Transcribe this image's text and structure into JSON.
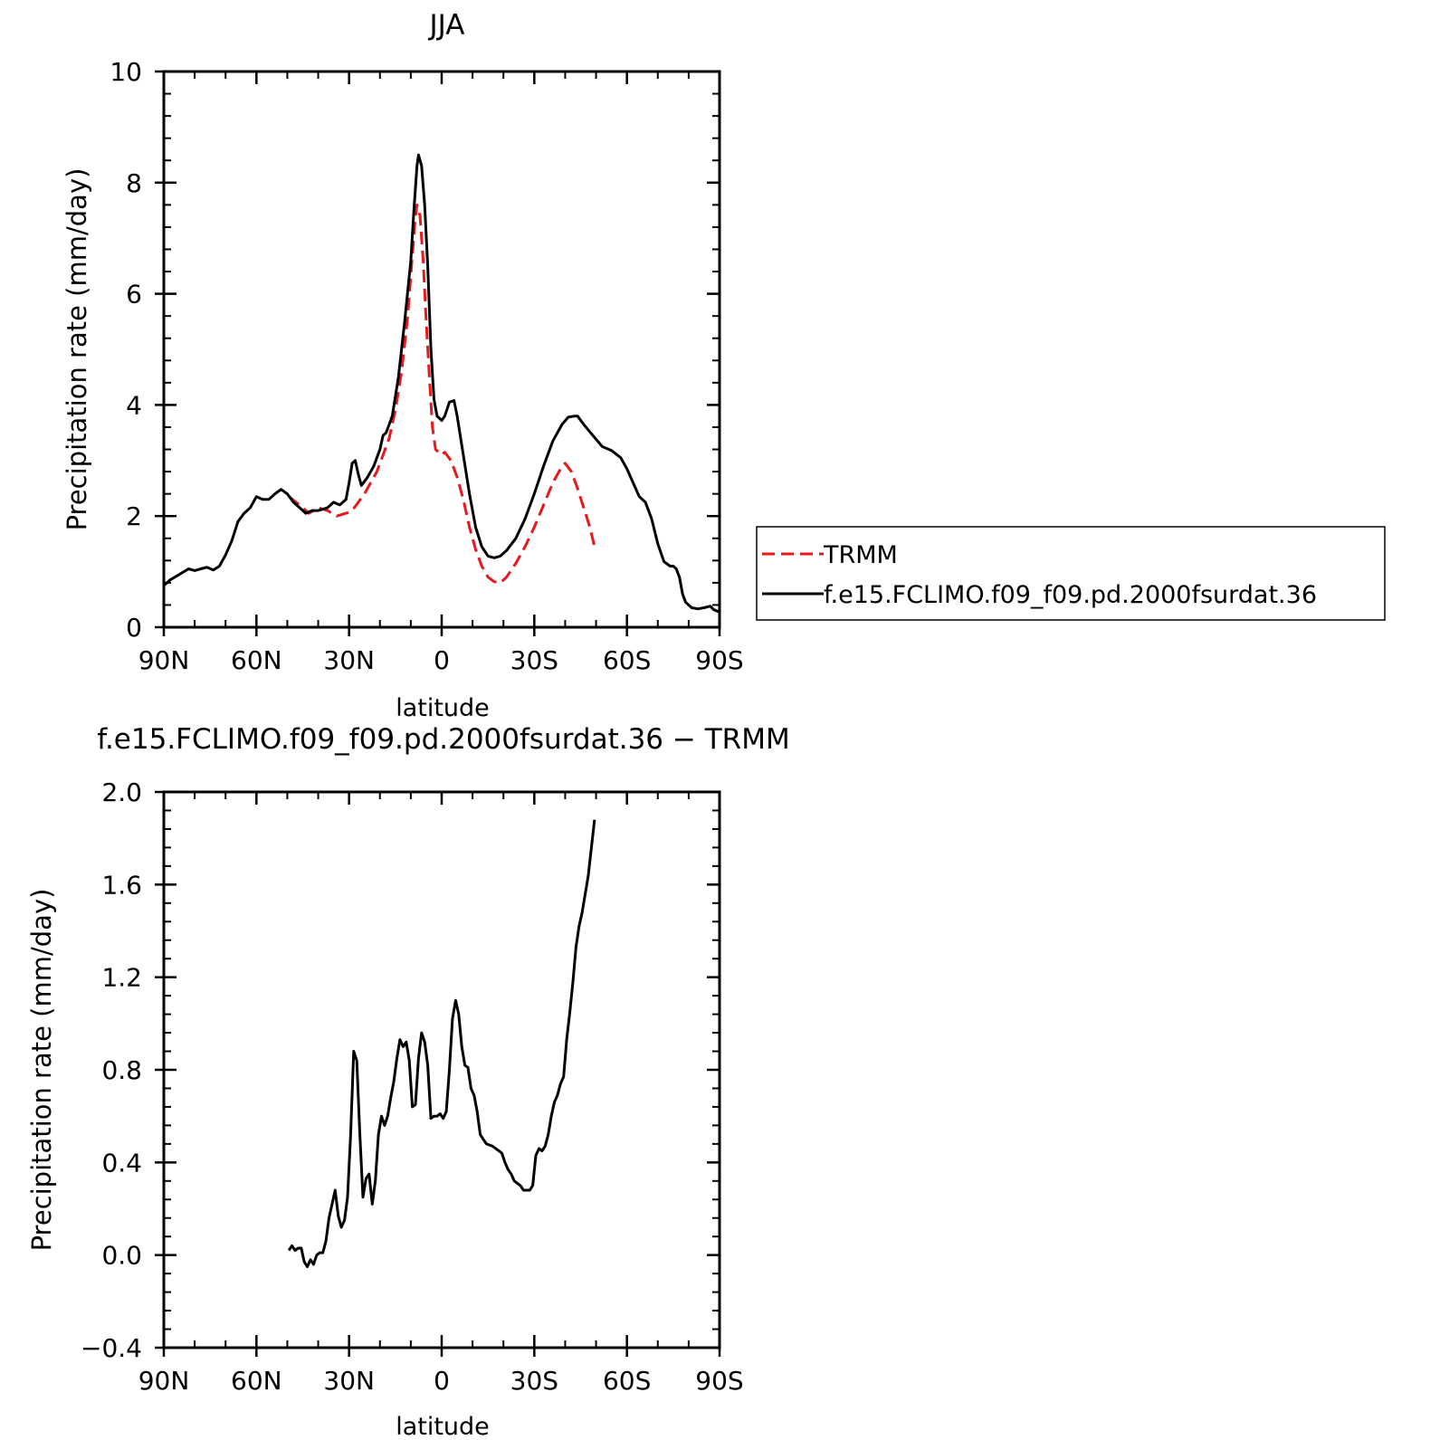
{
  "chart_data": [
    {
      "type": "line",
      "title": "JJA",
      "xlabel": "latitude",
      "ylabel": "Precipitation rate (mm/day)",
      "xlim": [
        90,
        -90
      ],
      "ylim": [
        0,
        10
      ],
      "x_ticks": [
        {
          "value": 90,
          "label": "90N"
        },
        {
          "value": 60,
          "label": "60N"
        },
        {
          "value": 30,
          "label": "30N"
        },
        {
          "value": 0,
          "label": "0"
        },
        {
          "value": -30,
          "label": "30S"
        },
        {
          "value": -60,
          "label": "60S"
        },
        {
          "value": -90,
          "label": "90S"
        }
      ],
      "y_ticks": [
        {
          "value": 0,
          "label": "0"
        },
        {
          "value": 2,
          "label": "2"
        },
        {
          "value": 4,
          "label": "4"
        },
        {
          "value": 6,
          "label": "6"
        },
        {
          "value": 8,
          "label": "8"
        },
        {
          "value": 10,
          "label": "10"
        }
      ],
      "legend_position": "right",
      "series": [
        {
          "name": "TRMM",
          "color": "#e8181c",
          "style": "dashed",
          "points": [
            [
              49.5,
              2.35
            ],
            [
              46,
              2.2
            ],
            [
              43,
              2.05
            ],
            [
              40,
              2.15
            ],
            [
              37,
              2.1
            ],
            [
              34,
              2.0
            ],
            [
              31,
              2.05
            ],
            [
              29,
              2.1
            ],
            [
              27,
              2.25
            ],
            [
              25,
              2.4
            ],
            [
              23,
              2.6
            ],
            [
              21,
              2.8
            ],
            [
              19,
              3.1
            ],
            [
              17,
              3.4
            ],
            [
              15,
              3.9
            ],
            [
              13,
              4.6
            ],
            [
              11,
              5.6
            ],
            [
              9.5,
              6.7
            ],
            [
              8.5,
              7.4
            ],
            [
              8,
              7.6
            ],
            [
              7,
              7.4
            ],
            [
              6,
              6.6
            ],
            [
              5,
              5.5
            ],
            [
              4,
              4.5
            ],
            [
              3,
              3.6
            ],
            [
              2,
              3.2
            ],
            [
              0,
              3.1
            ],
            [
              -1,
              3.15
            ],
            [
              -3,
              3.0
            ],
            [
              -5,
              2.7
            ],
            [
              -7,
              2.3
            ],
            [
              -9,
              1.8
            ],
            [
              -11,
              1.4
            ],
            [
              -13,
              1.1
            ],
            [
              -15,
              0.9
            ],
            [
              -17,
              0.82
            ],
            [
              -19,
              0.8
            ],
            [
              -21,
              0.9
            ],
            [
              -24,
              1.15
            ],
            [
              -27,
              1.45
            ],
            [
              -30,
              1.8
            ],
            [
              -33,
              2.2
            ],
            [
              -36,
              2.6
            ],
            [
              -39,
              2.9
            ],
            [
              -40,
              2.95
            ],
            [
              -42,
              2.8
            ],
            [
              -44,
              2.5
            ],
            [
              -46,
              2.15
            ],
            [
              -48,
              1.8
            ],
            [
              -49.5,
              1.45
            ]
          ]
        },
        {
          "name": "f.e15.FCLIMO.f09_f09.pd.2000fsurdat.36",
          "color": "#000000",
          "style": "solid",
          "points": [
            [
              90,
              0.75
            ],
            [
              88,
              0.85
            ],
            [
              85,
              0.95
            ],
            [
              82,
              1.05
            ],
            [
              80,
              1.02
            ],
            [
              78,
              1.05
            ],
            [
              76,
              1.08
            ],
            [
              74,
              1.03
            ],
            [
              72,
              1.1
            ],
            [
              70,
              1.3
            ],
            [
              68,
              1.55
            ],
            [
              66,
              1.9
            ],
            [
              64,
              2.05
            ],
            [
              62,
              2.15
            ],
            [
              60,
              2.35
            ],
            [
              58,
              2.3
            ],
            [
              56,
              2.3
            ],
            [
              54,
              2.4
            ],
            [
              52,
              2.48
            ],
            [
              50,
              2.4
            ],
            [
              48,
              2.25
            ],
            [
              46,
              2.15
            ],
            [
              44,
              2.05
            ],
            [
              42,
              2.1
            ],
            [
              40,
              2.1
            ],
            [
              37,
              2.15
            ],
            [
              35,
              2.25
            ],
            [
              33,
              2.2
            ],
            [
              31,
              2.3
            ],
            [
              30,
              2.6
            ],
            [
              29,
              2.95
            ],
            [
              28,
              3.0
            ],
            [
              27,
              2.75
            ],
            [
              26,
              2.55
            ],
            [
              24,
              2.7
            ],
            [
              22,
              2.9
            ],
            [
              20,
              3.2
            ],
            [
              19,
              3.45
            ],
            [
              18,
              3.5
            ],
            [
              16,
              3.8
            ],
            [
              14,
              4.5
            ],
            [
              12,
              5.5
            ],
            [
              10,
              6.6
            ],
            [
              9,
              7.5
            ],
            [
              8,
              8.3
            ],
            [
              7.5,
              8.5
            ],
            [
              6.5,
              8.3
            ],
            [
              5.5,
              7.6
            ],
            [
              4.5,
              6.5
            ],
            [
              3.5,
              5.0
            ],
            [
              2.5,
              4.1
            ],
            [
              1.5,
              3.8
            ],
            [
              0,
              3.72
            ],
            [
              -1,
              3.8
            ],
            [
              -2.5,
              4.05
            ],
            [
              -4,
              4.08
            ],
            [
              -5,
              3.8
            ],
            [
              -7,
              3.1
            ],
            [
              -9,
              2.4
            ],
            [
              -11,
              1.8
            ],
            [
              -13,
              1.45
            ],
            [
              -15,
              1.28
            ],
            [
              -17,
              1.25
            ],
            [
              -19,
              1.28
            ],
            [
              -21,
              1.38
            ],
            [
              -24,
              1.6
            ],
            [
              -27,
              1.95
            ],
            [
              -30,
              2.4
            ],
            [
              -33,
              2.9
            ],
            [
              -36,
              3.35
            ],
            [
              -39,
              3.65
            ],
            [
              -41,
              3.78
            ],
            [
              -43,
              3.8
            ],
            [
              -44,
              3.8
            ],
            [
              -46,
              3.65
            ],
            [
              -49,
              3.45
            ],
            [
              -52,
              3.25
            ],
            [
              -55,
              3.18
            ],
            [
              -58,
              3.05
            ],
            [
              -60,
              2.85
            ],
            [
              -62,
              2.6
            ],
            [
              -64,
              2.35
            ],
            [
              -66,
              2.25
            ],
            [
              -68,
              1.95
            ],
            [
              -70,
              1.5
            ],
            [
              -72,
              1.18
            ],
            [
              -74,
              1.1
            ],
            [
              -75,
              1.1
            ],
            [
              -76,
              1.05
            ],
            [
              -77,
              0.9
            ],
            [
              -78,
              0.6
            ],
            [
              -79,
              0.45
            ],
            [
              -81,
              0.35
            ],
            [
              -83,
              0.33
            ],
            [
              -85,
              0.35
            ],
            [
              -87,
              0.38
            ],
            [
              -88,
              0.32
            ],
            [
              -90,
              0.27
            ]
          ]
        }
      ]
    },
    {
      "type": "line",
      "title": "f.e15.FCLIMO.f09_f09.pd.2000fsurdat.36 − TRMM",
      "xlabel": "latitude",
      "ylabel": "Precipitation rate (mm/day)",
      "xlim": [
        90,
        -90
      ],
      "ylim": [
        -0.4,
        2.0
      ],
      "x_ticks": [
        {
          "value": 90,
          "label": "90N"
        },
        {
          "value": 60,
          "label": "60N"
        },
        {
          "value": 30,
          "label": "30N"
        },
        {
          "value": 0,
          "label": "0"
        },
        {
          "value": -30,
          "label": "30S"
        },
        {
          "value": -60,
          "label": "60S"
        },
        {
          "value": -90,
          "label": "90S"
        }
      ],
      "y_ticks": [
        {
          "value": -0.4,
          "label": "−0.4"
        },
        {
          "value": 0.0,
          "label": "0.0"
        },
        {
          "value": 0.4,
          "label": "0.4"
        },
        {
          "value": 0.8,
          "label": "0.8"
        },
        {
          "value": 1.2,
          "label": "1.2"
        },
        {
          "value": 1.6,
          "label": "1.6"
        },
        {
          "value": 2.0,
          "label": "2.0"
        }
      ],
      "series": [
        {
          "color": "#000000",
          "style": "solid",
          "points": [
            [
              49.5,
              0.02
            ],
            [
              48.5,
              0.04
            ],
            [
              47.5,
              0.02
            ],
            [
              46.5,
              0.03
            ],
            [
              45.5,
              0.03
            ],
            [
              44.5,
              -0.03
            ],
            [
              43.5,
              -0.05
            ],
            [
              42.5,
              -0.02
            ],
            [
              41.5,
              -0.04
            ],
            [
              40.5,
              0.0
            ],
            [
              39.5,
              0.01
            ],
            [
              38.5,
              0.01
            ],
            [
              37.5,
              0.06
            ],
            [
              36.5,
              0.16
            ],
            [
              35.5,
              0.22
            ],
            [
              34.5,
              0.28
            ],
            [
              33.5,
              0.17
            ],
            [
              32.5,
              0.12
            ],
            [
              31.5,
              0.15
            ],
            [
              30.5,
              0.25
            ],
            [
              29.5,
              0.52
            ],
            [
              28.5,
              0.88
            ],
            [
              27.5,
              0.84
            ],
            [
              26.5,
              0.52
            ],
            [
              25.5,
              0.25
            ],
            [
              24.5,
              0.33
            ],
            [
              23.5,
              0.35
            ],
            [
              22.5,
              0.22
            ],
            [
              21.5,
              0.32
            ],
            [
              20.5,
              0.52
            ],
            [
              19.5,
              0.6
            ],
            [
              18.5,
              0.56
            ],
            [
              17.5,
              0.6
            ],
            [
              16.5,
              0.68
            ],
            [
              15.5,
              0.75
            ],
            [
              14.5,
              0.85
            ],
            [
              13.5,
              0.93
            ],
            [
              12.5,
              0.9
            ],
            [
              11.5,
              0.92
            ],
            [
              10.5,
              0.84
            ],
            [
              9.5,
              0.64
            ],
            [
              8.5,
              0.65
            ],
            [
              7.5,
              0.85
            ],
            [
              6.5,
              0.96
            ],
            [
              5.5,
              0.92
            ],
            [
              4.5,
              0.82
            ],
            [
              3.5,
              0.59
            ],
            [
              2.5,
              0.6
            ],
            [
              1.5,
              0.6
            ],
            [
              0.5,
              0.61
            ],
            [
              -0.5,
              0.59
            ],
            [
              -1.5,
              0.62
            ],
            [
              -2.5,
              0.8
            ],
            [
              -3.5,
              1.02
            ],
            [
              -4.5,
              1.1
            ],
            [
              -5.5,
              1.04
            ],
            [
              -6.5,
              0.9
            ],
            [
              -7.5,
              0.82
            ],
            [
              -8.5,
              0.81
            ],
            [
              -9.5,
              0.72
            ],
            [
              -10.5,
              0.69
            ],
            [
              -11.5,
              0.62
            ],
            [
              -12.5,
              0.52
            ],
            [
              -13.5,
              0.5
            ],
            [
              -14.5,
              0.48
            ],
            [
              -16.5,
              0.47
            ],
            [
              -18.5,
              0.45
            ],
            [
              -19.5,
              0.44
            ],
            [
              -20.5,
              0.4
            ],
            [
              -21.5,
              0.37
            ],
            [
              -22.5,
              0.35
            ],
            [
              -23.5,
              0.32
            ],
            [
              -25.5,
              0.3
            ],
            [
              -26.5,
              0.28
            ],
            [
              -28.5,
              0.28
            ],
            [
              -29.5,
              0.3
            ],
            [
              -30.5,
              0.43
            ],
            [
              -31.5,
              0.46
            ],
            [
              -32.5,
              0.45
            ],
            [
              -33.5,
              0.47
            ],
            [
              -34.5,
              0.52
            ],
            [
              -35.5,
              0.6
            ],
            [
              -36.5,
              0.66
            ],
            [
              -37.5,
              0.69
            ],
            [
              -38.5,
              0.74
            ],
            [
              -39.5,
              0.77
            ],
            [
              -40.5,
              0.93
            ],
            [
              -41.5,
              1.05
            ],
            [
              -42.5,
              1.18
            ],
            [
              -43.5,
              1.33
            ],
            [
              -44.5,
              1.42
            ],
            [
              -45.5,
              1.48
            ],
            [
              -46.5,
              1.56
            ],
            [
              -47.5,
              1.64
            ],
            [
              -48.5,
              1.76
            ],
            [
              -49.5,
              1.88
            ]
          ]
        }
      ]
    }
  ]
}
